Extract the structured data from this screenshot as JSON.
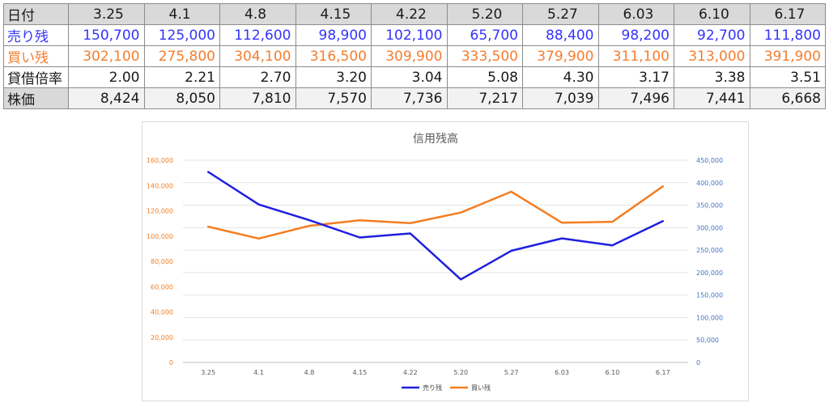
{
  "table": {
    "header_label": "日付",
    "dates": [
      "3.25",
      "4.1",
      "4.8",
      "4.15",
      "4.22",
      "5.20",
      "5.27",
      "6.03",
      "6.10",
      "6.17"
    ],
    "rows": [
      {
        "label": "売り残",
        "color": "#3333ff",
        "values": [
          "150,700",
          "125,000",
          "112,600",
          "98,900",
          "102,100",
          "65,700",
          "88,400",
          "98,200",
          "92,700",
          "111,800"
        ]
      },
      {
        "label": "買い残",
        "color": "#f47d2f",
        "values": [
          "302,100",
          "275,800",
          "304,100",
          "316,500",
          "309,900",
          "333,500",
          "379,900",
          "311,100",
          "313,000",
          "391,900"
        ]
      },
      {
        "label": "貸借倍率",
        "color": "#1a1a1a",
        "values": [
          "2.00",
          "2.21",
          "2.70",
          "3.20",
          "3.04",
          "5.08",
          "4.30",
          "3.17",
          "3.38",
          "3.51"
        ]
      },
      {
        "label": "株価",
        "color": "#1a1a1a",
        "values": [
          "8,424",
          "8,050",
          "7,810",
          "7,570",
          "7,736",
          "7,217",
          "7,039",
          "7,496",
          "7,441",
          "6,668"
        ]
      }
    ]
  },
  "chart_data": {
    "type": "line",
    "title": "信用残高",
    "categories": [
      "3.25",
      "4.1",
      "4.8",
      "4.15",
      "4.22",
      "5.20",
      "5.27",
      "6.03",
      "6.10",
      "6.17"
    ],
    "series": [
      {
        "name": "売り残",
        "axis": "left",
        "color": "#1f1fe0",
        "values": [
          150700,
          125000,
          112600,
          98900,
          102100,
          65700,
          88400,
          98200,
          92700,
          111800
        ]
      },
      {
        "name": "買い残",
        "axis": "right",
        "color": "#f47d20",
        "values": [
          302100,
          275800,
          304100,
          316500,
          309900,
          333500,
          379900,
          311100,
          313000,
          391900
        ]
      }
    ],
    "y_left": {
      "min": 0,
      "max": 160000,
      "step": 20000,
      "color": "#f47d20",
      "tick_labels": [
        "0",
        "20,000",
        "40,000",
        "60,000",
        "80,000",
        "100,000",
        "120,000",
        "140,000",
        "160,000"
      ]
    },
    "y_right": {
      "min": 0,
      "max": 450000,
      "step": 50000,
      "color": "#4472c4",
      "tick_labels": [
        "0",
        "50,000",
        "100,000",
        "150,000",
        "200,000",
        "250,000",
        "300,000",
        "350,000",
        "400,000",
        "450,000"
      ]
    },
    "grid": true,
    "legend": "bottom"
  }
}
